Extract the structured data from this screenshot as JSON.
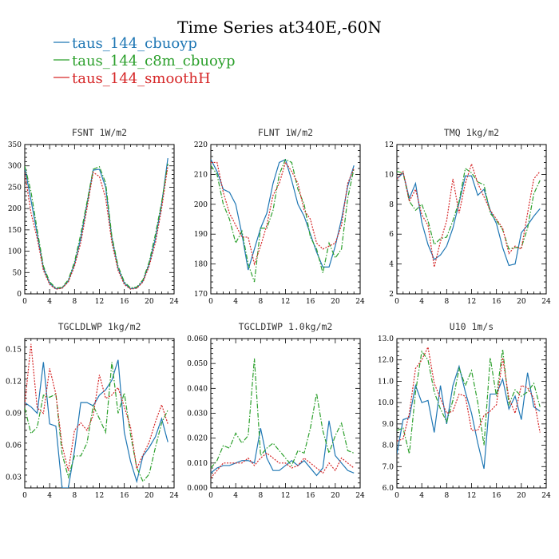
{
  "figure": {
    "title": "Time Series at340E,-60N"
  },
  "legend": {
    "entries": [
      {
        "name": "taus_144_cbuoyp",
        "color": "#1f77b4",
        "dash": "solid"
      },
      {
        "name": "taus_144_c8m_cbuoyp",
        "color": "#2ca02c",
        "dash": "dashdot"
      },
      {
        "name": "taus_144_smoothH",
        "color": "#d62728",
        "dash": "dotted"
      }
    ]
  },
  "chart_data": [
    {
      "type": "line",
      "title": "FSNT  1W/m2",
      "xlim": [
        0,
        24
      ],
      "ylim": [
        0,
        350
      ],
      "xticks": [
        "0",
        "4",
        "8",
        "12",
        "16",
        "20",
        "24"
      ],
      "yticks": [
        "0",
        "50",
        "100",
        "150",
        "200",
        "250",
        "300",
        "350"
      ],
      "x": [
        0,
        1,
        2,
        3,
        4,
        5,
        6,
        7,
        8,
        9,
        10,
        11,
        12,
        13,
        14,
        15,
        16,
        17,
        18,
        19,
        20,
        21,
        22,
        23
      ],
      "series": [
        {
          "name": "taus_144_cbuoyp",
          "values": [
            296,
            220,
            140,
            60,
            25,
            12,
            14,
            30,
            70,
            130,
            210,
            290,
            292,
            250,
            130,
            60,
            25,
            12,
            14,
            30,
            70,
            130,
            210,
            318
          ]
        },
        {
          "name": "taus_144_c8m_cbuoyp",
          "values": [
            300,
            240,
            150,
            65,
            28,
            14,
            15,
            33,
            75,
            140,
            215,
            292,
            298,
            260,
            135,
            65,
            28,
            14,
            16,
            33,
            75,
            140,
            215,
            305
          ]
        },
        {
          "name": "taus_144_smoothH",
          "values": [
            285,
            190,
            130,
            55,
            22,
            11,
            13,
            28,
            65,
            120,
            200,
            285,
            275,
            225,
            120,
            55,
            22,
            11,
            13,
            28,
            65,
            120,
            200,
            300
          ]
        }
      ]
    },
    {
      "type": "line",
      "title": "FLNT  1W/m2",
      "xlim": [
        0,
        24
      ],
      "ylim": [
        170,
        220
      ],
      "xticks": [
        "0",
        "4",
        "8",
        "12",
        "16",
        "20",
        "24"
      ],
      "yticks": [
        "170",
        "180",
        "190",
        "200",
        "210",
        "220"
      ],
      "x": [
        0,
        1,
        2,
        3,
        4,
        5,
        6,
        7,
        8,
        9,
        10,
        11,
        12,
        13,
        14,
        15,
        16,
        17,
        18,
        19,
        20,
        21,
        22,
        23
      ],
      "series": [
        {
          "name": "taus_144_cbuoyp",
          "values": [
            215,
            211,
            205,
            204,
            200,
            190,
            178,
            185,
            192,
            197,
            207,
            214,
            215,
            208,
            200,
            196,
            190,
            184,
            179,
            179,
            186,
            195,
            206,
            213
          ]
        },
        {
          "name": "taus_144_c8m_cbuoyp",
          "values": [
            213,
            210,
            200,
            195,
            187,
            191,
            180,
            174,
            192,
            192,
            198,
            210,
            215,
            214,
            205,
            200,
            189,
            185,
            177,
            187,
            182,
            185,
            202,
            212
          ]
        },
        {
          "name": "taus_144_smoothH",
          "values": [
            214,
            214,
            204,
            197,
            193,
            189,
            189,
            180,
            186,
            193,
            203,
            207,
            214,
            211,
            207,
            198,
            195,
            187,
            185,
            186,
            187,
            193,
            207,
            212
          ]
        }
      ]
    },
    {
      "type": "line",
      "title": "TMQ  1kg/m2",
      "xlim": [
        0,
        24
      ],
      "ylim": [
        2,
        12
      ],
      "xticks": [
        "0",
        "4",
        "8",
        "12",
        "16",
        "20",
        "24"
      ],
      "yticks": [
        "2",
        "4",
        "6",
        "8",
        "10",
        "12"
      ],
      "x": [
        0,
        1,
        2,
        3,
        4,
        5,
        6,
        7,
        8,
        9,
        10,
        11,
        12,
        13,
        14,
        15,
        16,
        17,
        18,
        19,
        20,
        21,
        22,
        23
      ],
      "series": [
        {
          "name": "taus_144_cbuoyp",
          "values": [
            9.7,
            10.1,
            8.4,
            9.4,
            6.8,
            5.3,
            4.3,
            4.6,
            5.2,
            6.4,
            8.1,
            9.9,
            9.9,
            8.6,
            9.0,
            7.6,
            6.7,
            5.1,
            3.9,
            4.0,
            6.1,
            6.6,
            7.2,
            7.7
          ]
        },
        {
          "name": "taus_144_c8m_cbuoyp",
          "values": [
            10.2,
            10.1,
            8.2,
            7.6,
            8.0,
            6.9,
            5.3,
            5.7,
            5.8,
            6.9,
            8.2,
            10.4,
            10.1,
            9.5,
            9.3,
            7.4,
            6.9,
            6.3,
            5.0,
            5.1,
            5.1,
            6.4,
            8.7,
            9.6
          ]
        },
        {
          "name": "taus_144_smoothH",
          "values": [
            9.7,
            10.2,
            8.2,
            9.0,
            7.3,
            6.6,
            3.8,
            5.5,
            6.9,
            9.7,
            7.4,
            9.4,
            10.7,
            9.4,
            8.5,
            7.6,
            7.0,
            6.4,
            4.7,
            5.2,
            5.0,
            7.4,
            9.7,
            10.2
          ]
        }
      ]
    },
    {
      "type": "line",
      "title": "TGCLDLWP  1kg/m2",
      "xlim": [
        0,
        24
      ],
      "ylim": [
        0.02,
        0.16
      ],
      "xticks": [
        "0",
        "4",
        "8",
        "12",
        "16",
        "20",
        "24"
      ],
      "yticks": [
        "0.03",
        "0.06",
        "0.09",
        "0.12",
        "0.15"
      ],
      "x": [
        0,
        1,
        2,
        3,
        4,
        5,
        6,
        7,
        8,
        9,
        10,
        11,
        12,
        13,
        14,
        15,
        16,
        17,
        18,
        19,
        20,
        21,
        22,
        23
      ],
      "series": [
        {
          "name": "taus_144_cbuoyp",
          "values": [
            0.1,
            0.096,
            0.09,
            0.138,
            0.08,
            0.078,
            0.02,
            0.02,
            0.055,
            0.1,
            0.1,
            0.097,
            0.107,
            0.112,
            0.121,
            0.14,
            0.072,
            0.045,
            0.026,
            0.05,
            0.058,
            0.068,
            0.085,
            0.063
          ]
        },
        {
          "name": "taus_144_c8m_cbuoyp",
          "values": [
            0.095,
            0.071,
            0.077,
            0.107,
            0.105,
            0.108,
            0.052,
            0.03,
            0.05,
            0.05,
            0.062,
            0.097,
            0.085,
            0.072,
            0.138,
            0.09,
            0.109,
            0.07,
            0.039,
            0.026,
            0.033,
            0.058,
            0.081,
            0.093
          ]
        },
        {
          "name": "taus_144_smoothH",
          "values": [
            0.098,
            0.155,
            0.095,
            0.09,
            0.132,
            0.108,
            0.06,
            0.036,
            0.074,
            0.081,
            0.074,
            0.088,
            0.126,
            0.104,
            0.107,
            0.114,
            0.096,
            0.077,
            0.038,
            0.051,
            0.063,
            0.082,
            0.098,
            0.08
          ]
        }
      ]
    },
    {
      "type": "line",
      "title": "TGCLDIWP  1.0kg/m2",
      "xlim": [
        0,
        24
      ],
      "ylim": [
        0.0,
        0.06
      ],
      "xticks": [
        "0",
        "4",
        "8",
        "12",
        "16",
        "20",
        "24"
      ],
      "yticks": [
        "0.000",
        "0.010",
        "0.020",
        "0.030",
        "0.040",
        "0.050",
        "0.060"
      ],
      "x": [
        0,
        1,
        2,
        3,
        4,
        5,
        6,
        7,
        8,
        9,
        10,
        11,
        12,
        13,
        14,
        15,
        16,
        17,
        18,
        19,
        20,
        21,
        22,
        23
      ],
      "series": [
        {
          "name": "taus_144_cbuoyp",
          "values": [
            0.006,
            0.008,
            0.009,
            0.009,
            0.01,
            0.011,
            0.011,
            0.01,
            0.024,
            0.012,
            0.007,
            0.007,
            0.009,
            0.011,
            0.009,
            0.011,
            0.008,
            0.005,
            0.008,
            0.027,
            0.013,
            0.01,
            0.007,
            0.006
          ]
        },
        {
          "name": "taus_144_c8m_cbuoyp",
          "values": [
            0.008,
            0.011,
            0.017,
            0.016,
            0.022,
            0.018,
            0.021,
            0.052,
            0.013,
            0.016,
            0.018,
            0.015,
            0.012,
            0.009,
            0.015,
            0.014,
            0.024,
            0.038,
            0.023,
            0.014,
            0.021,
            0.026,
            0.015,
            0.014
          ]
        },
        {
          "name": "taus_144_smoothH",
          "values": [
            0.004,
            0.007,
            0.01,
            0.01,
            0.01,
            0.01,
            0.012,
            0.009,
            0.012,
            0.014,
            0.012,
            0.01,
            0.01,
            0.008,
            0.009,
            0.012,
            0.01,
            0.008,
            0.006,
            0.01,
            0.007,
            0.012,
            0.01,
            0.008
          ]
        }
      ]
    },
    {
      "type": "line",
      "title": "U10  1m/s",
      "xlim": [
        0,
        24
      ],
      "ylim": [
        6.0,
        13.0
      ],
      "xticks": [
        "0",
        "4",
        "8",
        "12",
        "16",
        "20",
        "24"
      ],
      "yticks": [
        "6.0",
        "7.0",
        "8.0",
        "9.0",
        "10.0",
        "11.0",
        "12.0",
        "13.0"
      ],
      "x": [
        0,
        1,
        2,
        3,
        4,
        5,
        6,
        7,
        8,
        9,
        10,
        11,
        12,
        13,
        14,
        15,
        16,
        17,
        18,
        19,
        20,
        21,
        22,
        23
      ],
      "series": [
        {
          "name": "taus_144_cbuoyp",
          "values": [
            7.6,
            9.2,
            9.3,
            10.8,
            10.0,
            10.1,
            8.6,
            10.8,
            9.0,
            10.8,
            11.7,
            10.5,
            9.5,
            8.1,
            6.9,
            10.4,
            10.4,
            11.1,
            9.7,
            10.3,
            9.2,
            11.4,
            9.8,
            9.6
          ]
        },
        {
          "name": "taus_144_c8m_cbuoyp",
          "values": [
            8.7,
            8.8,
            7.6,
            10.5,
            12.4,
            12.0,
            10.5,
            9.7,
            9.1,
            10.1,
            11.6,
            10.8,
            11.5,
            10.0,
            8.0,
            12.1,
            10.3,
            12.5,
            9.9,
            10.6,
            10.3,
            10.5,
            10.9,
            9.8
          ]
        },
        {
          "name": "taus_144_smoothH",
          "values": [
            8.2,
            8.3,
            9.5,
            11.6,
            12.0,
            12.6,
            10.9,
            10.2,
            9.5,
            9.6,
            10.4,
            10.3,
            8.7,
            8.7,
            9.4,
            9.6,
            9.9,
            12.1,
            10.2,
            9.5,
            10.8,
            10.7,
            10.2,
            8.6
          ]
        }
      ]
    }
  ]
}
